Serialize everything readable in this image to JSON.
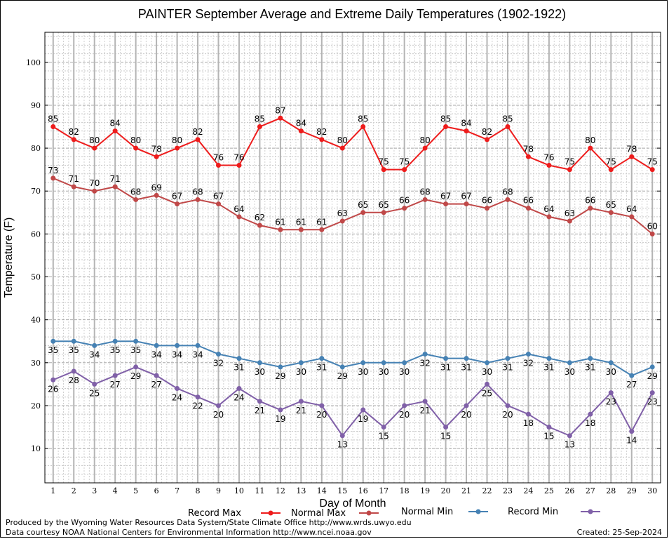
{
  "chart_data": {
    "type": "line",
    "title": "PAINTER September Average and Extreme Daily Temperatures (1902-1922)",
    "xlabel": "Day of Month",
    "ylabel": "Temperature (F)",
    "x": [
      1,
      2,
      3,
      4,
      5,
      6,
      7,
      8,
      9,
      10,
      11,
      12,
      13,
      14,
      15,
      16,
      17,
      18,
      19,
      20,
      21,
      22,
      23,
      24,
      25,
      26,
      27,
      28,
      29,
      30
    ],
    "xlim": [
      0.6,
      30.4
    ],
    "ylim": [
      2,
      107
    ],
    "yticks": [
      10,
      20,
      30,
      40,
      50,
      60,
      70,
      80,
      90,
      100
    ],
    "grid": true,
    "legend_position": "bottom",
    "series": [
      {
        "name": "Record Max",
        "color": "#ee1c1c",
        "label_pos": "above",
        "values": [
          85,
          82,
          80,
          84,
          80,
          78,
          80,
          82,
          76,
          76,
          85,
          87,
          84,
          82,
          80,
          85,
          75,
          75,
          80,
          85,
          84,
          82,
          85,
          78,
          76,
          75,
          80,
          75,
          78,
          75
        ]
      },
      {
        "name": "Normal Max",
        "color": "#c04848",
        "label_pos": "above",
        "values": [
          73,
          71,
          70,
          71,
          68,
          69,
          67,
          68,
          67,
          64,
          62,
          61,
          61,
          61,
          63,
          65,
          65,
          66,
          68,
          67,
          67,
          66,
          68,
          66,
          64,
          63,
          66,
          65,
          64,
          60
        ]
      },
      {
        "name": "Normal Min",
        "color": "#4682b4",
        "label_pos": "below",
        "values": [
          35,
          35,
          34,
          35,
          35,
          34,
          34,
          34,
          32,
          31,
          30,
          29,
          30,
          31,
          29,
          30,
          30,
          30,
          32,
          31,
          31,
          30,
          31,
          32,
          31,
          30,
          31,
          30,
          27,
          29
        ]
      },
      {
        "name": "Record Min",
        "color": "#8060a8",
        "label_pos": "below",
        "values": [
          26,
          28,
          25,
          27,
          29,
          27,
          24,
          22,
          20,
          24,
          21,
          19,
          21,
          20,
          13,
          19,
          15,
          20,
          21,
          15,
          20,
          25,
          20,
          18,
          15,
          13,
          18,
          23,
          14,
          23
        ]
      }
    ]
  },
  "footer": {
    "produced_by": "Produced by the Wyoming Water Resources Data System/State Climate Office http://www.wrds.uwyo.edu",
    "courtesy": "Data courtesy NOAA National Centers for Environmental Information http://www.ncei.noaa.gov",
    "created": "Created:  25-Sep-2024"
  }
}
